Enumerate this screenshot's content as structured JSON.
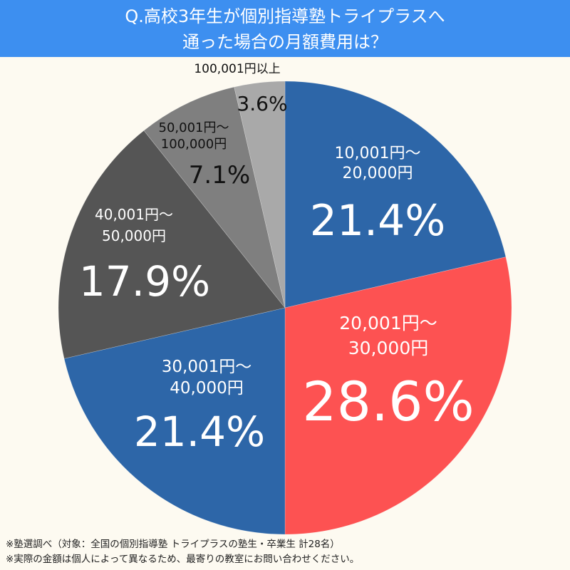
{
  "title": {
    "line1": "Q.高校3年生が個別指導塾トライプラスへ",
    "line2": "通った場合の月額費用は？"
  },
  "chart_data": {
    "type": "pie",
    "title": "Q.高校3年生が個別指導塾トライプラスへ通った場合の月額費用は？",
    "start_angle": "top (12 o'clock), clockwise",
    "slices": [
      {
        "label_line1": "10,001円〜",
        "label_line2": "20,000円",
        "value": 21.4,
        "pct": "21.4%",
        "color": "#2d66a8",
        "text_color": "#ffffff"
      },
      {
        "label_line1": "20,001円〜",
        "label_line2": "30,000円",
        "value": 28.6,
        "pct": "28.6%",
        "color": "#fd5252",
        "text_color": "#ffffff"
      },
      {
        "label_line1": "30,001円〜",
        "label_line2": "40,000円",
        "value": 21.4,
        "pct": "21.4%",
        "color": "#2d66a8",
        "text_color": "#ffffff"
      },
      {
        "label_line1": "40,001円〜",
        "label_line2": "50,000円",
        "value": 17.9,
        "pct": "17.9%",
        "color": "#555555",
        "text_color": "#ffffff"
      },
      {
        "label_line1": "50,001円〜",
        "label_line2": "100,000円",
        "value": 7.1,
        "pct": "7.1%",
        "color": "#7f7f7f",
        "text_color": "#111111"
      },
      {
        "label_line1": "100,001円以上",
        "label_line2": "",
        "value": 3.6,
        "pct": "3.6%",
        "color": "#a9a9a9",
        "text_color": "#111111"
      }
    ],
    "legend": "none (labels inside slices)"
  },
  "notes": {
    "line1": "※塾選調べ（対象：全国の個別指導塾 トライプラスの塾生・卒業生 計28名）",
    "line2": "※実際の金額は個人によって異なるため、最寄りの教室にお問い合わせください。"
  }
}
